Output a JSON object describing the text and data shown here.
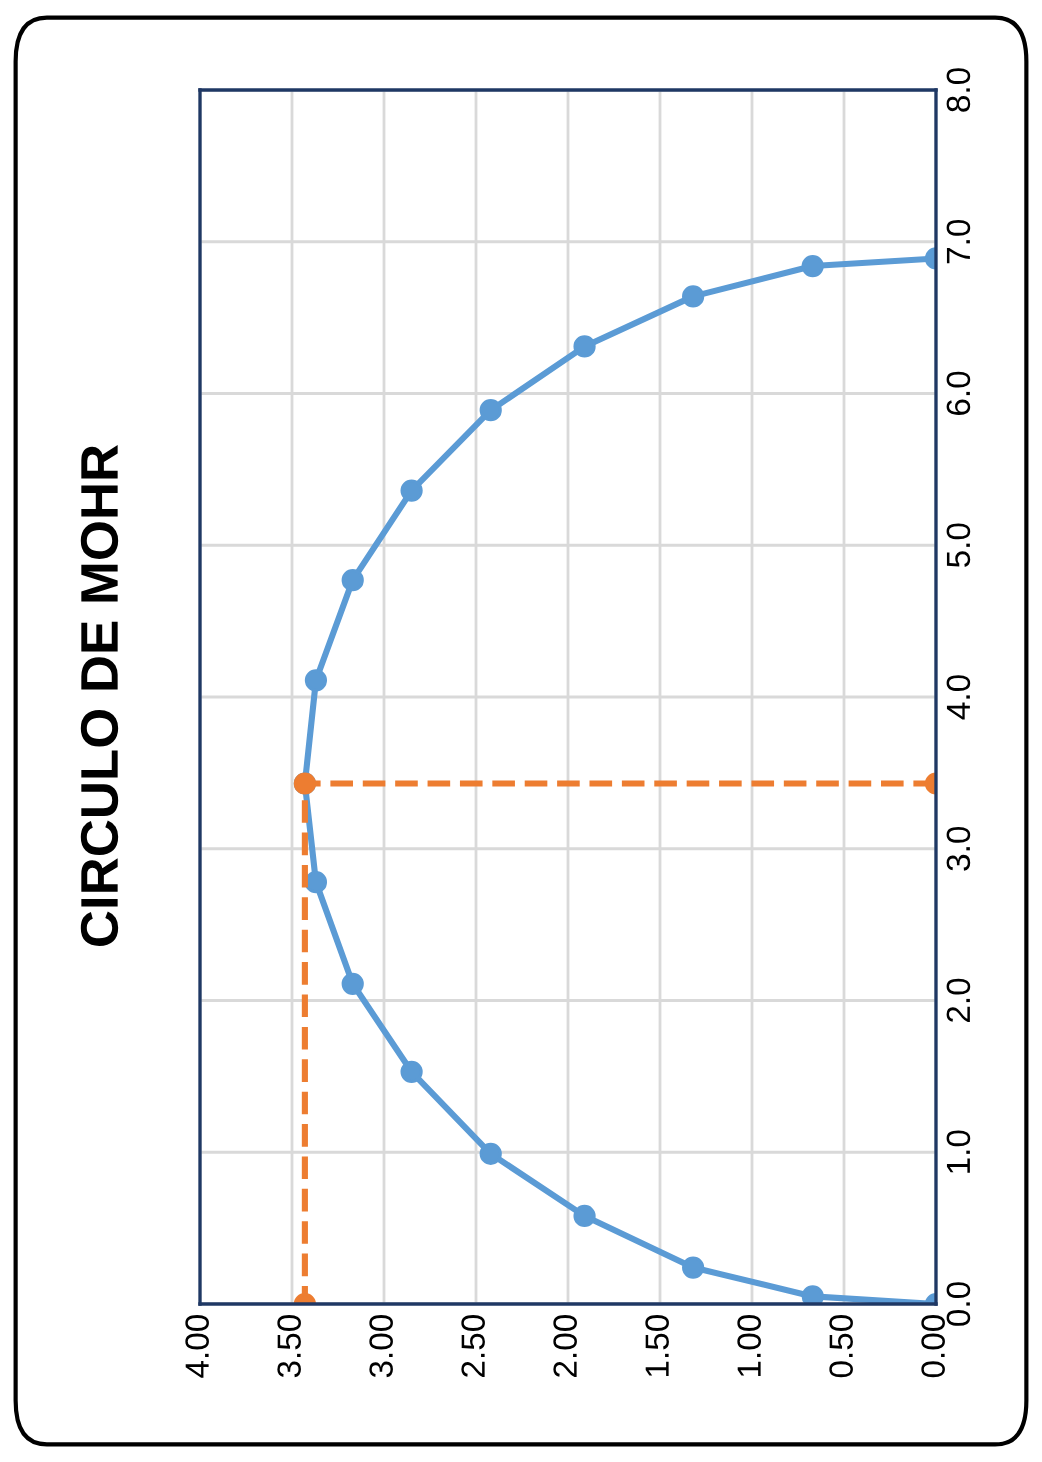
{
  "chart_data": {
    "type": "line",
    "title": "CIRCULO DE MOHR",
    "series": [
      {
        "color": "#5b9bd5",
        "marker": "circle",
        "line_style": "solid",
        "x": [
          0,
          0.67,
          1.32,
          1.91,
          2.42,
          2.85,
          3.17,
          3.37,
          3.43,
          3.37,
          3.17,
          2.85,
          2.42,
          1.91,
          1.32,
          0.67,
          0
        ],
        "values": [
          0,
          0.05,
          0.24,
          0.58,
          0.99,
          1.53,
          2.11,
          2.78,
          3.43,
          4.11,
          4.77,
          5.36,
          5.89,
          6.31,
          6.64,
          6.84,
          6.89
        ]
      },
      {
        "color": "#ed7d31",
        "marker": "circle",
        "line_style": "dashed",
        "x": [
          0,
          3.43,
          3.43
        ],
        "values": [
          3.43,
          3.43,
          0
        ]
      }
    ],
    "ylim": [
      0,
      8
    ],
    "yticks": [
      {
        "value": 0,
        "label": "0.0"
      },
      {
        "value": 1,
        "label": "1.0"
      },
      {
        "value": 2,
        "label": "2.0"
      },
      {
        "value": 3,
        "label": "3.0"
      },
      {
        "value": 4,
        "label": "4.0"
      },
      {
        "value": 5,
        "label": "5.0"
      },
      {
        "value": 6,
        "label": "6.0"
      },
      {
        "value": 7,
        "label": "7.0"
      },
      {
        "value": 8,
        "label": "8.0"
      }
    ],
    "xlim": [
      4,
      0
    ],
    "xticks": [
      {
        "value": 4,
        "label": "4.00"
      },
      {
        "value": 3.5,
        "label": "3.50"
      },
      {
        "value": 3,
        "label": "3.00"
      },
      {
        "value": 2.5,
        "label": "2.50"
      },
      {
        "value": 2,
        "label": "2.00"
      },
      {
        "value": 1.5,
        "label": "1.50"
      },
      {
        "value": 1,
        "label": "1.00"
      },
      {
        "value": 0.5,
        "label": "0.50"
      },
      {
        "value": 0,
        "label": "0.00"
      }
    ],
    "grid": true
  }
}
